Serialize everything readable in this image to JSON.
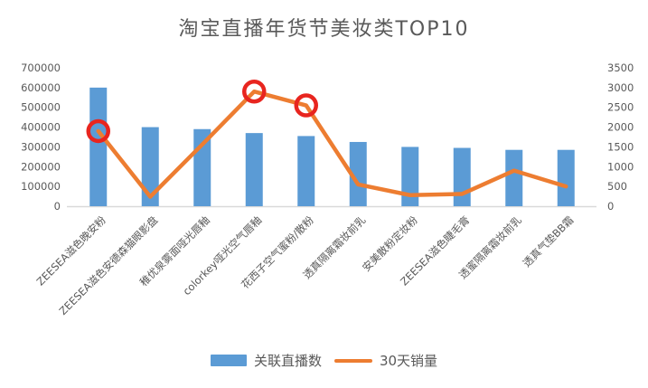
{
  "title": "淘宝直播年货节美妆类TOP10",
  "colors": {
    "bar": "#5B9BD5",
    "line": "#ED7D31",
    "highlight_circle": "#E8251F",
    "axis_text": "#595959",
    "axis_line": "#D9D9D9",
    "title_text": "#595959"
  },
  "chart_data": {
    "type": "combo-bar-line",
    "title": "淘宝直播年货节美妆类TOP10",
    "categories": [
      "ZEESEA滋色晚安粉",
      "ZEESEA滋色安德森猫眼影盘",
      "稚优泉雾面哑光唇釉",
      "colorkey哑光空气唇釉",
      "花西子空气蜜粉/散粉",
      "透真隔离霜妆前乳",
      "安美散粉定妆粉",
      "ZEESEA滋色睫毛膏",
      "透蜜隔离霜妆前乳",
      "透真气垫BB霜"
    ],
    "series": [
      {
        "name": "关联直播数",
        "type": "bar",
        "axis": "left",
        "values": [
          600000,
          400000,
          390000,
          370000,
          355000,
          325000,
          300000,
          295000,
          285000,
          285000
        ]
      },
      {
        "name": "30天销量",
        "type": "line",
        "axis": "right",
        "values": [
          1900,
          240,
          1560,
          2900,
          2550,
          550,
          280,
          310,
          900,
          500
        ]
      }
    ],
    "left_axis": {
      "min": 0,
      "max": 700000,
      "step": 100000,
      "ticks": [
        "0",
        "100000",
        "200000",
        "300000",
        "400000",
        "500000",
        "600000",
        "700000"
      ]
    },
    "right_axis": {
      "min": 0,
      "max": 3500,
      "step": 500,
      "ticks": [
        "0",
        "500",
        "1000",
        "1500",
        "2000",
        "2500",
        "3000",
        "3500"
      ]
    },
    "highlighted_points": [
      0,
      3,
      4
    ],
    "legend_position": "bottom",
    "grid": false
  }
}
